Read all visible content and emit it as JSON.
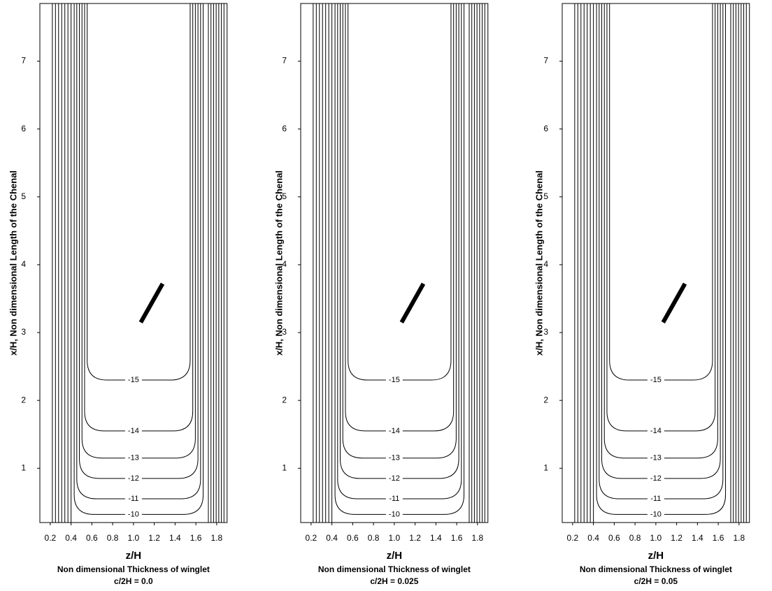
{
  "chart_data": [
    {
      "type": "contour",
      "xlabel": "z/H",
      "ylabel": "x/H, Non dimensional Length of the Chenal",
      "caption": "Non dimensional Thickness of winglet",
      "subtitle": "c/2H = 0.0",
      "xlim": [
        0.1,
        1.9
      ],
      "ylim": [
        0.2,
        7.85
      ],
      "xticks": [
        0.2,
        0.4,
        0.6,
        0.8,
        {
          "value": 1,
          "label": "1.0"
        },
        1.2,
        1.4,
        1.6,
        1.8
      ],
      "yticks": [
        1,
        2,
        3,
        4,
        5,
        6,
        7
      ],
      "levels": [
        -10,
        -11,
        -12,
        -13,
        -14,
        -15
      ]
    },
    {
      "type": "contour",
      "xlabel": "z/H",
      "ylabel": "x/H, Non dimensional Length of the Chenal",
      "caption": "Non dimensional Thickness of winglet",
      "subtitle": "c/2H = 0.025",
      "xlim": [
        0.1,
        1.9
      ],
      "ylim": [
        0.2,
        7.85
      ],
      "xticks": [
        0.2,
        0.4,
        0.6,
        0.8,
        {
          "value": 1,
          "label": "1.0"
        },
        1.2,
        1.4,
        1.6,
        1.8
      ],
      "yticks": [
        1,
        2,
        3,
        4,
        5,
        6,
        7
      ],
      "levels": [
        -10,
        -11,
        -12,
        -13,
        -14,
        -15
      ]
    },
    {
      "type": "contour",
      "xlabel": "z/H",
      "ylabel": "x/H, Non dimensional Length of the Chenal",
      "caption": "Non dimensional Thickness of winglet",
      "subtitle": "c/2H = 0.05",
      "xlim": [
        0.1,
        1.9
      ],
      "ylim": [
        0.2,
        7.85
      ],
      "xticks": [
        0.2,
        0.4,
        0.6,
        0.8,
        {
          "value": 1,
          "label": "1.0"
        },
        1.2,
        1.4,
        1.6,
        1.8
      ],
      "yticks": [
        1,
        2,
        3,
        4,
        5,
        6,
        7
      ],
      "levels": [
        -10,
        -11,
        -12,
        -13,
        -14,
        -15
      ]
    }
  ]
}
